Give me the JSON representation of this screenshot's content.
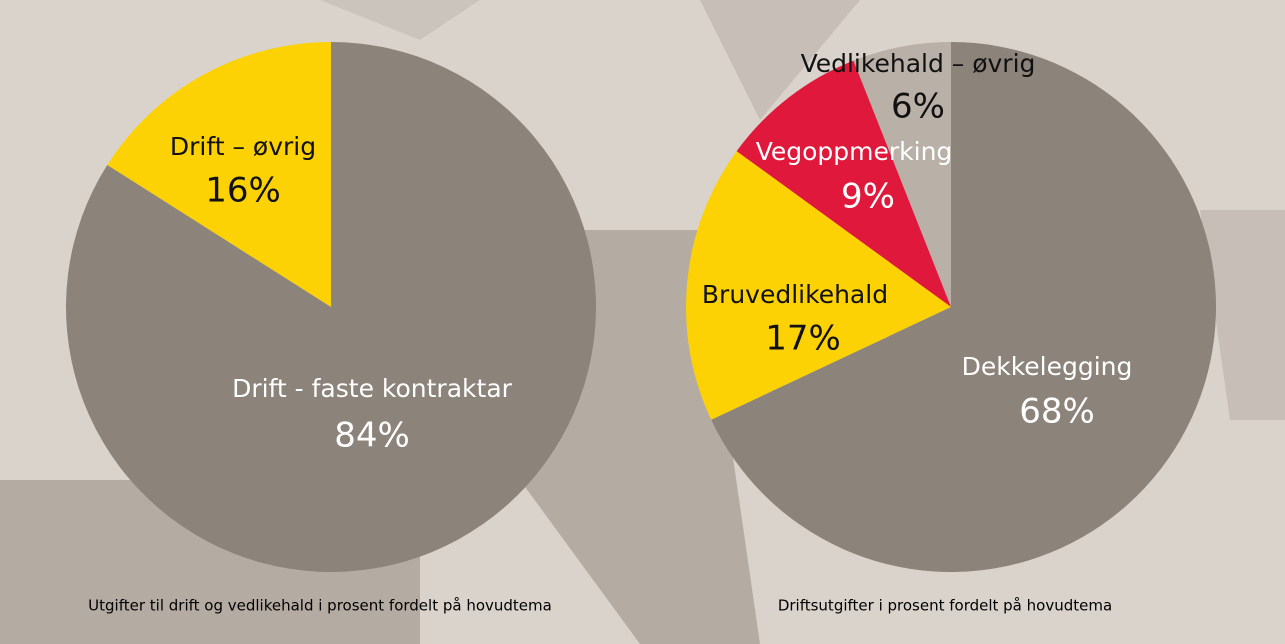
{
  "chart_data": [
    {
      "type": "pie",
      "title": "Utgifter til drift og vedlikehald i prosent fordelt på hovudtema",
      "categories": [
        "Drift – øvrig",
        "Drift - faste kontraktar"
      ],
      "values": [
        16,
        84
      ],
      "value_labels": [
        "16%",
        "84%"
      ],
      "colors": [
        "#fcd205",
        "#8c837b"
      ]
    },
    {
      "type": "pie",
      "title": "Driftsutgifter i prosent fordelt på hovudtema",
      "categories": [
        "Vedlikehald – øvrig",
        "Vegoppmerking",
        "Bruvedlikehald",
        "Dekkelegging"
      ],
      "values": [
        6,
        9,
        17,
        68
      ],
      "value_labels": [
        "6%",
        "9%",
        "17%",
        "68%"
      ],
      "colors": [
        "#b9b0a7",
        "#e0193c",
        "#fcd205",
        "#8c837b"
      ]
    }
  ]
}
